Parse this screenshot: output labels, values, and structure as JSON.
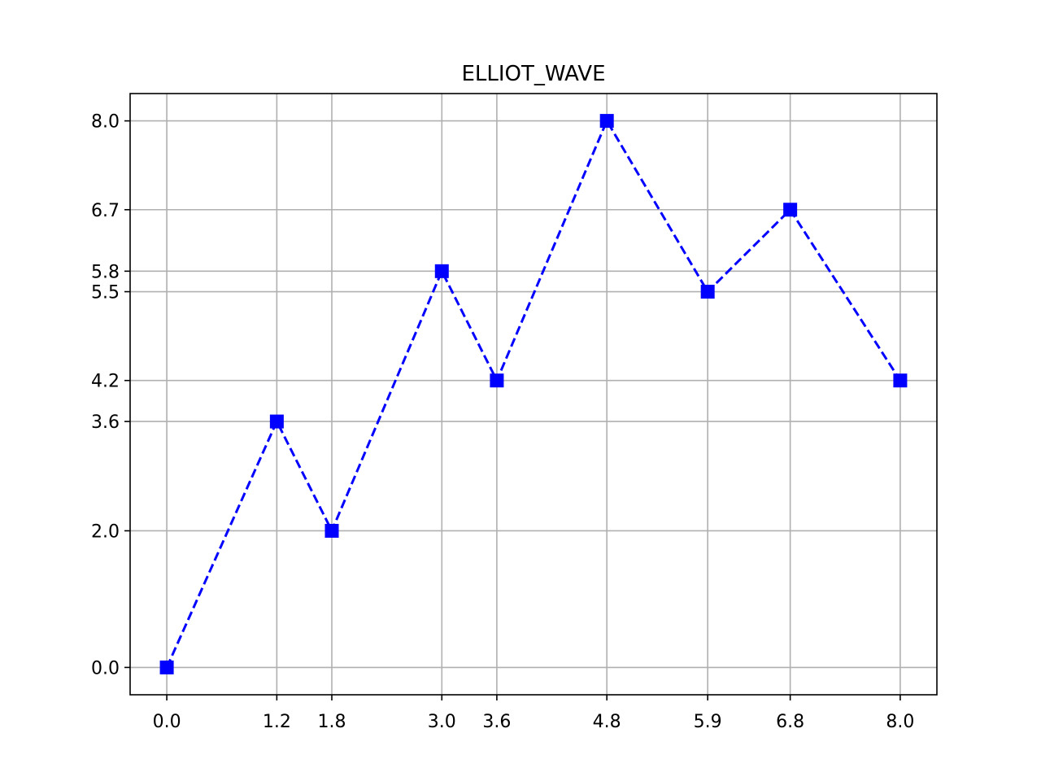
{
  "chart_data": {
    "type": "line",
    "title": "ELLIOT_WAVE",
    "xlabel": "",
    "ylabel": "",
    "xlim": [
      -0.4,
      8.4
    ],
    "ylim": [
      -0.4,
      8.4
    ],
    "grid": true,
    "x_ticks": [
      0.0,
      1.2,
      1.8,
      3.0,
      3.6,
      4.8,
      5.9,
      6.8,
      8.0
    ],
    "x_tick_labels": [
      "0.0",
      "1.2",
      "1.8",
      "3.0",
      "3.6",
      "4.8",
      "5.9",
      "6.8",
      "8.0"
    ],
    "y_ticks": [
      0.0,
      2.0,
      3.6,
      4.2,
      5.5,
      5.8,
      6.7,
      8.0
    ],
    "y_tick_labels": [
      "0.0",
      "2.0",
      "3.6",
      "4.2",
      "5.5",
      "5.8",
      "6.7",
      "8.0"
    ],
    "series": [
      {
        "x": [
          0.0,
          1.2,
          1.8,
          3.0,
          3.6,
          4.8,
          5.9,
          6.8,
          8.0
        ],
        "y": [
          0.0,
          3.6,
          2.0,
          5.8,
          4.2,
          8.0,
          5.5,
          6.7,
          4.2
        ],
        "color": "#0000ff",
        "line_style": "dashed",
        "marker": "square"
      }
    ]
  }
}
